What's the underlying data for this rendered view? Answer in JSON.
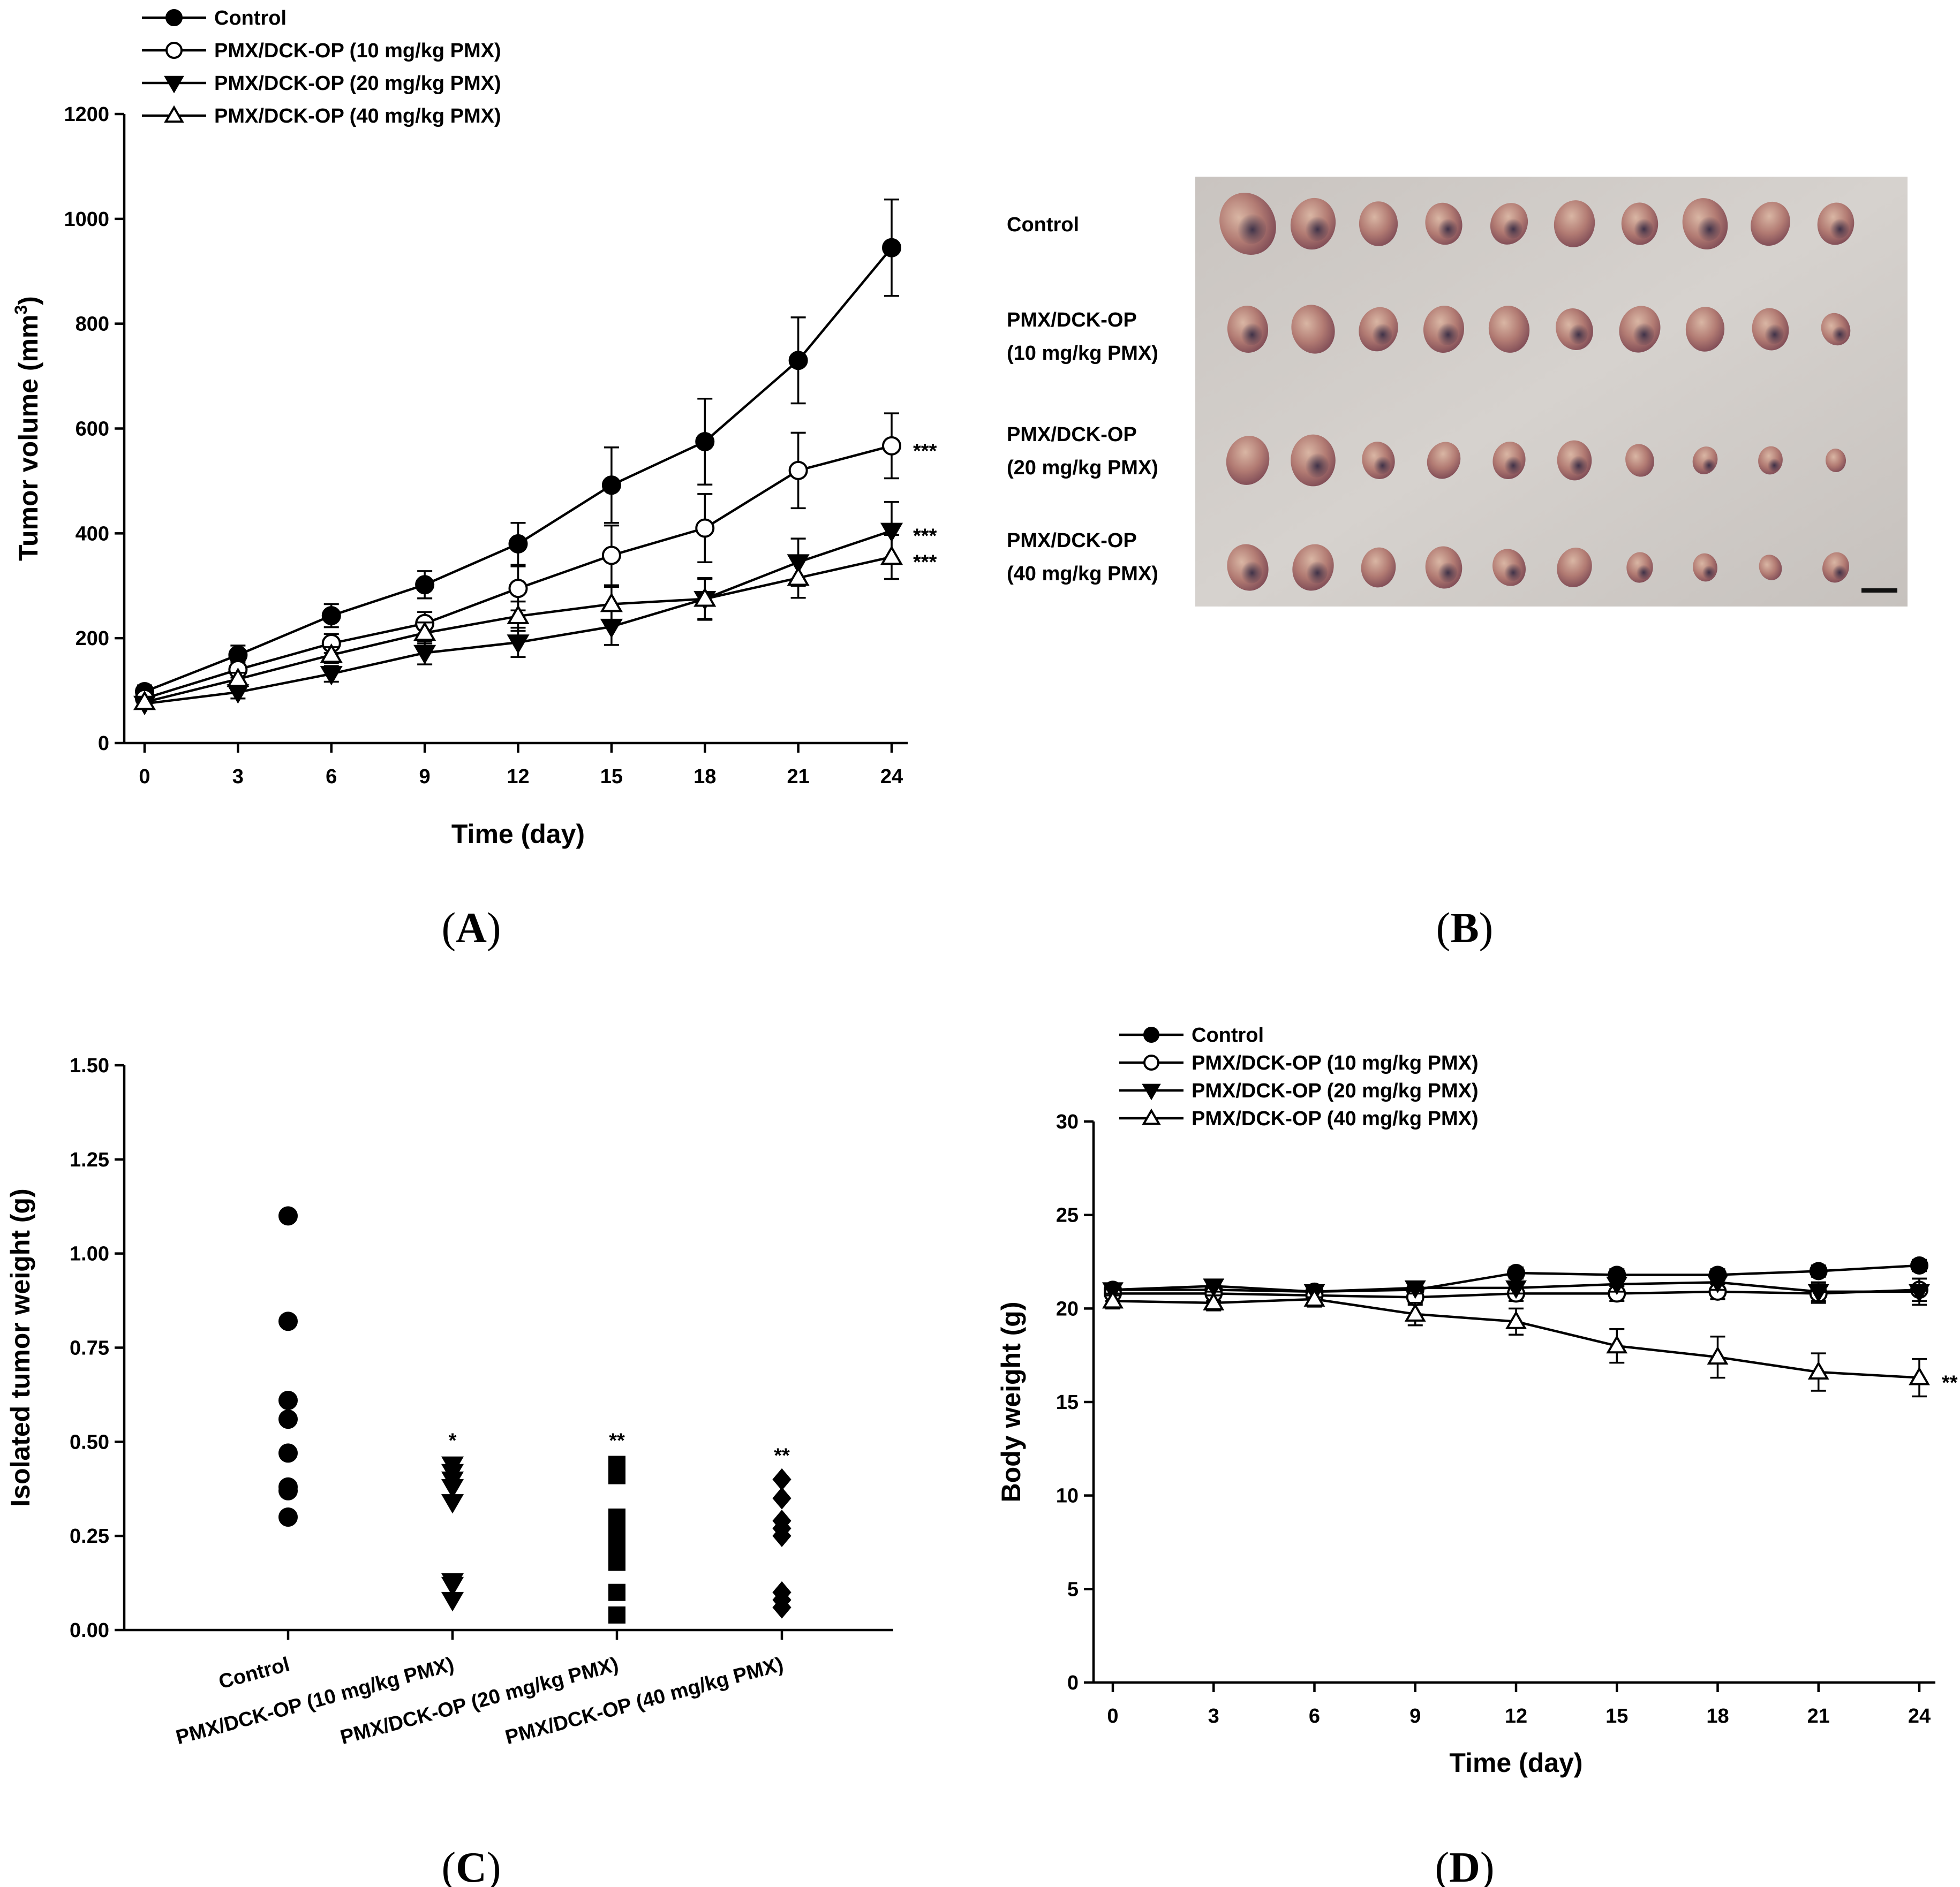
{
  "panel_labels": {
    "a": "A",
    "b": "B",
    "c": "C",
    "d": "D"
  },
  "photo": {
    "rows": [
      {
        "line1": "Control",
        "line2": ""
      },
      {
        "line1": "PMX/DCK-OP",
        "line2": "(10 mg/kg PMX)"
      },
      {
        "line1": "PMX/DCK-OP",
        "line2": "(20 mg/kg PMX)"
      },
      {
        "line1": "PMX/DCK-OP",
        "line2": "(40 mg/kg PMX)"
      }
    ],
    "tumors_per_row": 10
  },
  "chart_data": [
    {
      "id": "A",
      "type": "line",
      "xlabel": "Time (day)",
      "ylabel": "Tumor volume (mm³)",
      "xlim": [
        0,
        24
      ],
      "ylim": [
        0,
        1200
      ],
      "xticks": [
        0,
        3,
        6,
        9,
        12,
        15,
        18,
        21,
        24
      ],
      "yticks": [
        0,
        200,
        400,
        600,
        800,
        1000,
        1200
      ],
      "x": [
        0,
        3,
        6,
        9,
        12,
        15,
        18,
        21,
        24
      ],
      "series": [
        {
          "name": "Control",
          "marker": "filled-circle",
          "values": [
            98,
            168,
            243,
            302,
            380,
            492,
            575,
            730,
            945
          ],
          "errors": [
            12,
            18,
            22,
            26,
            40,
            72,
            82,
            82,
            92
          ],
          "significance": ""
        },
        {
          "name": "PMX/DCK-OP (10 mg/kg PMX)",
          "marker": "open-circle",
          "values": [
            85,
            140,
            190,
            228,
            295,
            358,
            410,
            520,
            567
          ],
          "errors": [
            10,
            15,
            18,
            22,
            42,
            57,
            65,
            72,
            62
          ],
          "significance": "***"
        },
        {
          "name": "PMX/DCK-OP (20 mg/kg PMX)",
          "marker": "filled-triangle-down",
          "values": [
            75,
            97,
            132,
            172,
            192,
            222,
            275,
            345,
            405
          ],
          "errors": [
            8,
            12,
            15,
            22,
            28,
            35,
            40,
            45,
            55
          ],
          "significance": "***"
        },
        {
          "name": "PMX/DCK-OP (40 mg/kg PMX)",
          "marker": "open-triangle-up",
          "values": [
            78,
            122,
            168,
            210,
            242,
            265,
            275,
            315,
            355
          ],
          "errors": [
            9,
            12,
            15,
            20,
            28,
            33,
            38,
            38,
            42
          ],
          "significance": "***"
        }
      ]
    },
    {
      "id": "C",
      "type": "scatter",
      "xlabel": "",
      "ylabel": "Isolated tumor weight (g)",
      "ylim": [
        0,
        1.5
      ],
      "yticks": [
        "0.00",
        "0.25",
        "0.50",
        "0.75",
        "1.00",
        "1.25",
        "1.50"
      ],
      "categories": [
        "Control",
        "PMX/DCK-OP (10 mg/kg PMX)",
        "PMX/DCK-OP (20 mg/kg PMX)",
        "PMX/DCK-OP (40 mg/kg PMX)"
      ],
      "series": [
        {
          "name": "Control",
          "marker": "filled-circle",
          "values": [
            1.1,
            0.82,
            0.61,
            0.56,
            0.47,
            0.38,
            0.37,
            0.3
          ],
          "significance": ""
        },
        {
          "name": "PMX/DCK-OP (10 mg/kg PMX)",
          "marker": "filled-triangle-down",
          "values": [
            0.44,
            0.42,
            0.4,
            0.38,
            0.34,
            0.13,
            0.12,
            0.08
          ],
          "significance": "*"
        },
        {
          "name": "PMX/DCK-OP (20 mg/kg PMX)",
          "marker": "filled-square",
          "values": [
            0.44,
            0.41,
            0.3,
            0.27,
            0.24,
            0.22,
            0.18,
            0.1,
            0.04
          ],
          "significance": "**"
        },
        {
          "name": "PMX/DCK-OP (40 mg/kg PMX)",
          "marker": "filled-diamond",
          "values": [
            0.4,
            0.35,
            0.29,
            0.27,
            0.25,
            0.1,
            0.08,
            0.06
          ],
          "significance": "**"
        }
      ]
    },
    {
      "id": "D",
      "type": "line",
      "xlabel": "Time (day)",
      "ylabel": "Body weight (g)",
      "xlim": [
        0,
        24
      ],
      "ylim": [
        0,
        30
      ],
      "xticks": [
        0,
        3,
        6,
        9,
        12,
        15,
        18,
        21,
        24
      ],
      "yticks": [
        0,
        5,
        10,
        15,
        20,
        25,
        30
      ],
      "x": [
        0,
        3,
        6,
        9,
        12,
        15,
        18,
        21,
        24
      ],
      "series": [
        {
          "name": "Control",
          "marker": "filled-circle",
          "values": [
            21.0,
            21.0,
            20.9,
            21.0,
            21.9,
            21.8,
            21.8,
            22.0,
            22.3
          ],
          "errors": [
            0.3,
            0.3,
            0.3,
            0.3,
            0.3,
            0.3,
            0.3,
            0.3,
            0.3
          ],
          "significance": ""
        },
        {
          "name": "PMX/DCK-OP (10 mg/kg PMX)",
          "marker": "open-circle",
          "values": [
            20.8,
            20.8,
            20.7,
            20.6,
            20.8,
            20.8,
            20.9,
            20.8,
            21.0
          ],
          "errors": [
            0.4,
            0.4,
            0.4,
            0.4,
            0.4,
            0.4,
            0.4,
            0.5,
            0.6
          ],
          "significance": ""
        },
        {
          "name": "PMX/DCK-OP (20 mg/kg PMX)",
          "marker": "filled-triangle-down",
          "values": [
            21.0,
            21.2,
            20.9,
            21.1,
            21.1,
            21.3,
            21.4,
            20.9,
            20.9
          ],
          "errors": [
            0.3,
            0.3,
            0.3,
            0.3,
            0.3,
            0.4,
            0.4,
            0.5,
            0.7
          ],
          "significance": ""
        },
        {
          "name": "PMX/DCK-OP (40 mg/kg PMX)",
          "marker": "open-triangle-up",
          "values": [
            20.4,
            20.3,
            20.5,
            19.7,
            19.3,
            18.0,
            17.4,
            16.6,
            16.3
          ],
          "errors": [
            0.4,
            0.4,
            0.4,
            0.6,
            0.7,
            0.9,
            1.1,
            1.0,
            1.0
          ],
          "significance": "**"
        }
      ]
    }
  ]
}
